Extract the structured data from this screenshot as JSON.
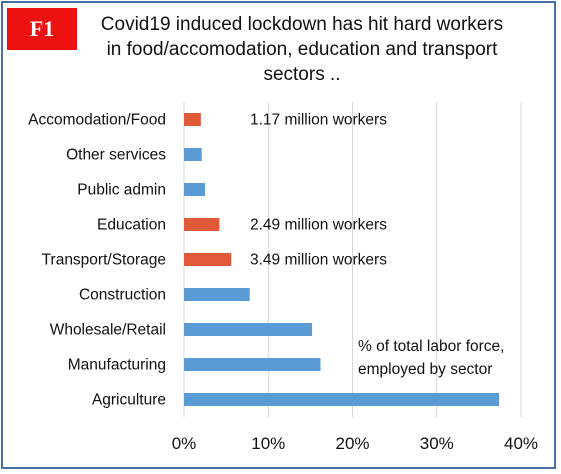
{
  "badge": "F1",
  "title_lines": [
    "Covid19 induced lockdown has hit hard workers",
    "in  food/accomodation, education and transport",
    "sectors .."
  ],
  "colors": {
    "highlight": "#e05a3a",
    "normal": "#5b9bd5",
    "gridline": "#d9d9d9",
    "frame": "#4a6fa5",
    "badge": "#ee1111"
  },
  "chart_data": {
    "type": "bar",
    "orientation": "horizontal",
    "categories": [
      "Accomodation/Food",
      "Other services",
      "Public admin",
      "Education",
      "Transport/Storage",
      "Construction",
      "Wholesale/Retail",
      "Manufacturing",
      "Agriculture"
    ],
    "values": [
      2.0,
      2.1,
      2.5,
      4.2,
      5.6,
      7.8,
      15.2,
      16.2,
      37.4
    ],
    "highlighted": [
      true,
      false,
      false,
      true,
      true,
      false,
      false,
      false,
      false
    ],
    "xlim": [
      0,
      40
    ],
    "xticks": [
      "0%",
      "10%",
      "20%",
      "30%",
      "40%"
    ],
    "grid": true,
    "annotations": [
      {
        "category": "Accomodation/Food",
        "text": "1.17 million workers"
      },
      {
        "category": "Education",
        "text": "2.49 million workers"
      },
      {
        "category": "Transport/Storage",
        "text": "3.49 million workers"
      }
    ],
    "note_lines": [
      "% of total labor force,",
      "employed by sector"
    ]
  }
}
